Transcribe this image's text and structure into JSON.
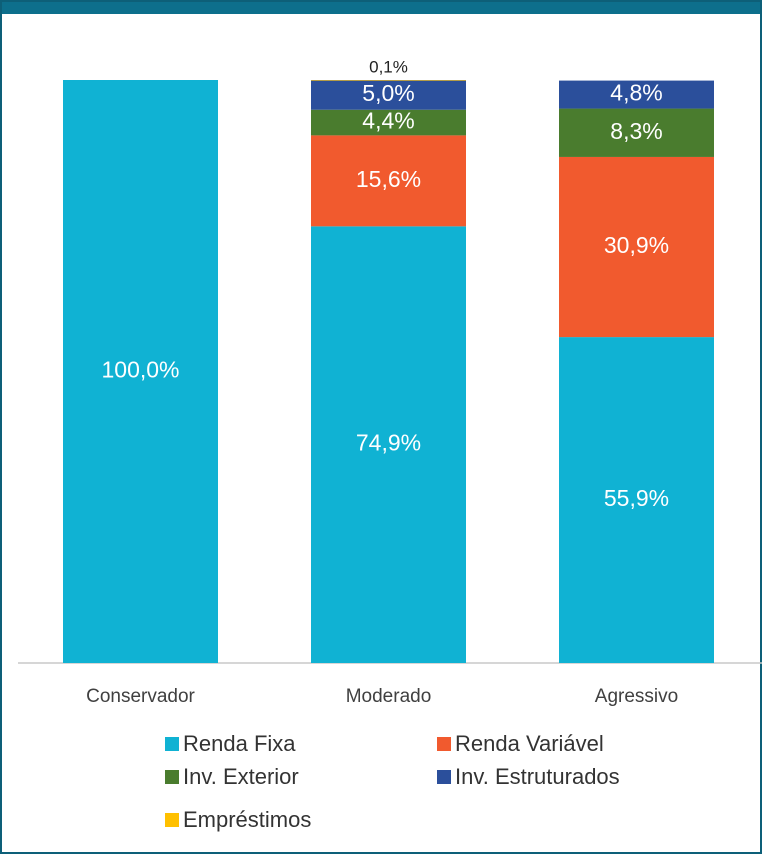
{
  "chart_data": {
    "type": "stacked_bar",
    "categories": [
      "Conservador",
      "Moderado",
      "Agressivo"
    ],
    "ylim": [
      0,
      100
    ],
    "series": [
      {
        "name": "Renda Fixa",
        "color": "#10b2d3",
        "values": [
          100,
          74.9,
          55.9
        ],
        "value_labels": [
          "100,0%",
          "74,9%",
          "55,9%"
        ]
      },
      {
        "name": "Renda Variável",
        "color": "#f15a2e",
        "values": [
          0,
          15.6,
          30.9
        ],
        "value_labels": [
          null,
          "15,6%",
          "30,9%"
        ]
      },
      {
        "name": "Inv. Exterior",
        "color": "#4a7c2e",
        "values": [
          0,
          4.4,
          8.3
        ],
        "value_labels": [
          null,
          "4,4%",
          "8,3%"
        ]
      },
      {
        "name": "Inv. Estruturados",
        "color": "#2b4f9b",
        "values": [
          0,
          5.0,
          4.8
        ],
        "value_labels": [
          null,
          "5,0%",
          "4,8%"
        ]
      },
      {
        "name": "Empréstimos",
        "color": "#ffc000",
        "values": [
          0,
          0.1,
          0
        ],
        "value_labels": [
          null,
          "0,1%",
          null
        ]
      }
    ]
  }
}
